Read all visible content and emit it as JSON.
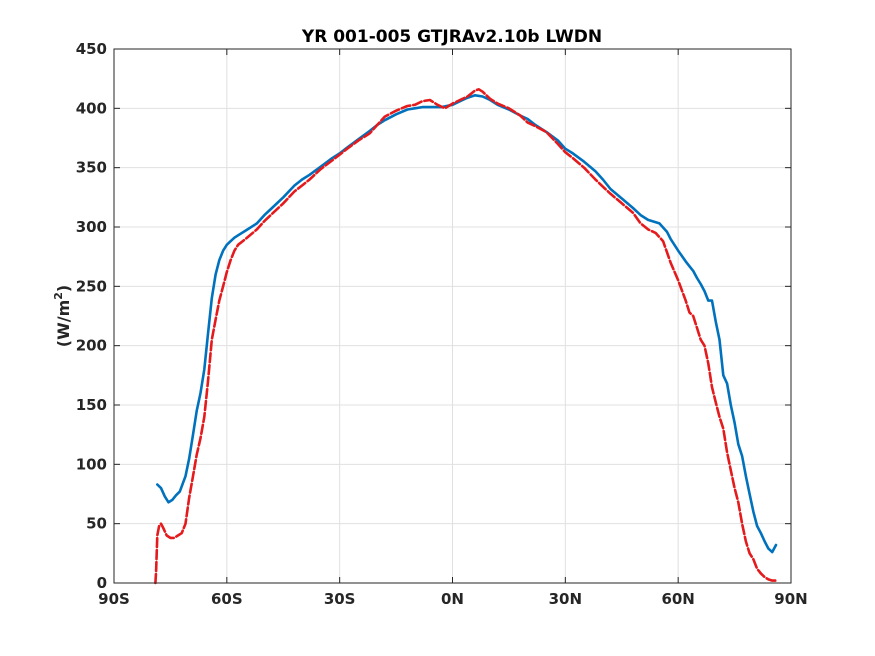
{
  "chart_data": {
    "type": "line",
    "title": "YR 001-005 GTJRAv2.10b LWDN",
    "xlabel": "",
    "ylabel": "(W/m",
    "ylabel_sup": "2",
    "ylabel_close": ")",
    "xlim": [
      -90,
      90
    ],
    "ylim": [
      0,
      450
    ],
    "grid": true,
    "x_ticks": [
      -90,
      -60,
      -30,
      0,
      30,
      60,
      90
    ],
    "x_tick_labels": [
      "90S",
      "60S",
      "30S",
      "0N",
      "30N",
      "60N",
      "90N"
    ],
    "y_ticks": [
      0,
      50,
      100,
      150,
      200,
      250,
      300,
      350,
      400,
      450
    ],
    "y_tick_labels": [
      "0",
      "50",
      "100",
      "150",
      "200",
      "250",
      "300",
      "350",
      "400",
      "450"
    ],
    "series": [
      {
        "color": "#0072BD",
        "style": "solid",
        "x": [
          -78.5,
          -77.5,
          -76.5,
          -75.5,
          -74.5,
          -73.5,
          -72.5,
          -71,
          -70,
          -69,
          -68,
          -67,
          -66,
          -65,
          -64,
          -63,
          -62,
          -61,
          -60,
          -59,
          -58,
          -57,
          -55,
          -52,
          -50,
          -48,
          -45,
          -42,
          -40,
          -38,
          -35,
          -32,
          -30,
          -28,
          -25,
          -22,
          -20,
          -18,
          -15,
          -12,
          -10,
          -8,
          -5,
          -3,
          0,
          2,
          4,
          6,
          8,
          10,
          12,
          15,
          18,
          20,
          22,
          25,
          28,
          30,
          32,
          35,
          38,
          40,
          42,
          45,
          48,
          50,
          52,
          55,
          57,
          58,
          60,
          62,
          63,
          64,
          65,
          66,
          67,
          68,
          69,
          70,
          71,
          72,
          73,
          74,
          75,
          76,
          77,
          78,
          79,
          80,
          81,
          82,
          83,
          84,
          85,
          86
        ],
        "y": [
          83,
          80,
          73,
          68,
          70,
          74,
          77,
          90,
          105,
          125,
          145,
          160,
          180,
          210,
          240,
          260,
          272,
          280,
          285,
          288,
          291,
          293,
          297,
          303,
          310,
          316,
          325,
          335,
          340,
          344,
          351,
          358,
          362,
          367,
          374,
          381,
          386,
          390,
          395,
          399,
          400,
          401,
          401,
          401,
          403,
          406,
          409,
          411,
          410,
          407,
          403,
          399,
          394,
          391,
          386,
          380,
          373,
          366,
          362,
          355,
          347,
          340,
          332,
          324,
          316,
          310,
          306,
          303,
          296,
          290,
          280,
          271,
          267,
          263,
          257,
          252,
          246,
          238,
          238,
          220,
          205,
          175,
          168,
          150,
          135,
          117,
          107,
          90,
          75,
          60,
          48,
          42,
          35,
          29,
          26,
          32
        ]
      },
      {
        "color": "#E41A1C",
        "style": "dashed",
        "x": [
          -79,
          -78.8,
          -78.5,
          -78,
          -77.5,
          -77,
          -76,
          -75,
          -74,
          -73,
          -72,
          -71,
          -70,
          -69,
          -68,
          -67,
          -66,
          -65,
          -64,
          -63,
          -62,
          -61,
          -60,
          -59,
          -58,
          -57,
          -55,
          -52,
          -50,
          -48,
          -45,
          -42,
          -40,
          -38,
          -35,
          -32,
          -30,
          -28,
          -25,
          -22,
          -20,
          -18,
          -15,
          -12,
          -10,
          -8,
          -6,
          -4,
          -2,
          0,
          2,
          4,
          6,
          7,
          8,
          10,
          12,
          15,
          18,
          20,
          22,
          25,
          28,
          30,
          32,
          35,
          38,
          40,
          42,
          45,
          48,
          50,
          52,
          54,
          56,
          58,
          60,
          62,
          63,
          64,
          65,
          66,
          67,
          68,
          69,
          70,
          71,
          72,
          73,
          74,
          75,
          76,
          77,
          78,
          79,
          80,
          81,
          82,
          83,
          84,
          85,
          86
        ],
        "y": [
          0,
          10,
          40,
          48,
          50,
          47,
          40,
          38,
          38,
          40,
          42,
          50,
          72,
          90,
          108,
          122,
          140,
          170,
          205,
          222,
          238,
          250,
          262,
          272,
          280,
          285,
          290,
          298,
          305,
          311,
          320,
          330,
          335,
          340,
          349,
          356,
          361,
          366,
          373,
          379,
          386,
          393,
          398,
          402,
          403,
          406,
          407,
          403,
          400,
          404,
          407,
          410,
          415,
          416,
          414,
          408,
          404,
          400,
          394,
          388,
          385,
          380,
          370,
          363,
          358,
          350,
          340,
          334,
          328,
          320,
          312,
          303,
          298,
          295,
          288,
          270,
          255,
          238,
          228,
          225,
          215,
          205,
          200,
          185,
          165,
          152,
          140,
          130,
          110,
          95,
          80,
          68,
          50,
          35,
          25,
          20,
          12,
          8,
          5,
          3,
          2,
          2
        ]
      }
    ]
  }
}
